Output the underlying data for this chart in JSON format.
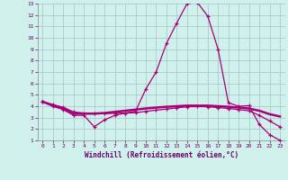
{
  "xlabel": "Windchill (Refroidissement éolien,°C)",
  "bg_color": "#d0f0ec",
  "grid_color": "#aacccc",
  "line_color": "#aa0077",
  "xlim": [
    -0.5,
    23.5
  ],
  "ylim": [
    1,
    13
  ],
  "xticks": [
    0,
    1,
    2,
    3,
    4,
    5,
    6,
    7,
    8,
    9,
    10,
    11,
    12,
    13,
    14,
    15,
    16,
    17,
    18,
    19,
    20,
    21,
    22,
    23
  ],
  "yticks": [
    1,
    2,
    3,
    4,
    5,
    6,
    7,
    8,
    9,
    10,
    11,
    12,
    13
  ],
  "line1_x": [
    0,
    1,
    2,
    3,
    4,
    5,
    6,
    7,
    8,
    9,
    10,
    11,
    12,
    13,
    14,
    15,
    16,
    17,
    18,
    19,
    20,
    21,
    22,
    23
  ],
  "line1_y": [
    4.4,
    4.0,
    3.7,
    3.2,
    3.2,
    2.2,
    2.8,
    3.2,
    3.4,
    3.55,
    5.5,
    7.0,
    9.5,
    11.3,
    13.0,
    13.1,
    11.9,
    9.0,
    4.3,
    4.0,
    4.05,
    2.4,
    1.5,
    1.0
  ],
  "line2_x": [
    0,
    1,
    2,
    3,
    4,
    5,
    6,
    7,
    8,
    9,
    10,
    11,
    12,
    13,
    14,
    15,
    16,
    17,
    18,
    19,
    20,
    21,
    22,
    23
  ],
  "line2_y": [
    4.4,
    4.05,
    3.8,
    3.35,
    3.35,
    3.35,
    3.4,
    3.5,
    3.6,
    3.7,
    3.8,
    3.88,
    3.95,
    4.0,
    4.05,
    4.05,
    4.05,
    4.0,
    3.95,
    3.88,
    3.8,
    3.6,
    3.3,
    3.1
  ],
  "line3_x": [
    0,
    1,
    2,
    3,
    4,
    5,
    6,
    7,
    8,
    9,
    10,
    11,
    12,
    13,
    14,
    15,
    16,
    17,
    18,
    19,
    20,
    21,
    22,
    23
  ],
  "line3_y": [
    4.4,
    4.15,
    3.9,
    3.5,
    3.4,
    3.35,
    3.35,
    3.38,
    3.4,
    3.42,
    3.55,
    3.65,
    3.75,
    3.85,
    3.95,
    3.97,
    3.95,
    3.88,
    3.8,
    3.7,
    3.6,
    3.2,
    2.7,
    2.2
  ]
}
